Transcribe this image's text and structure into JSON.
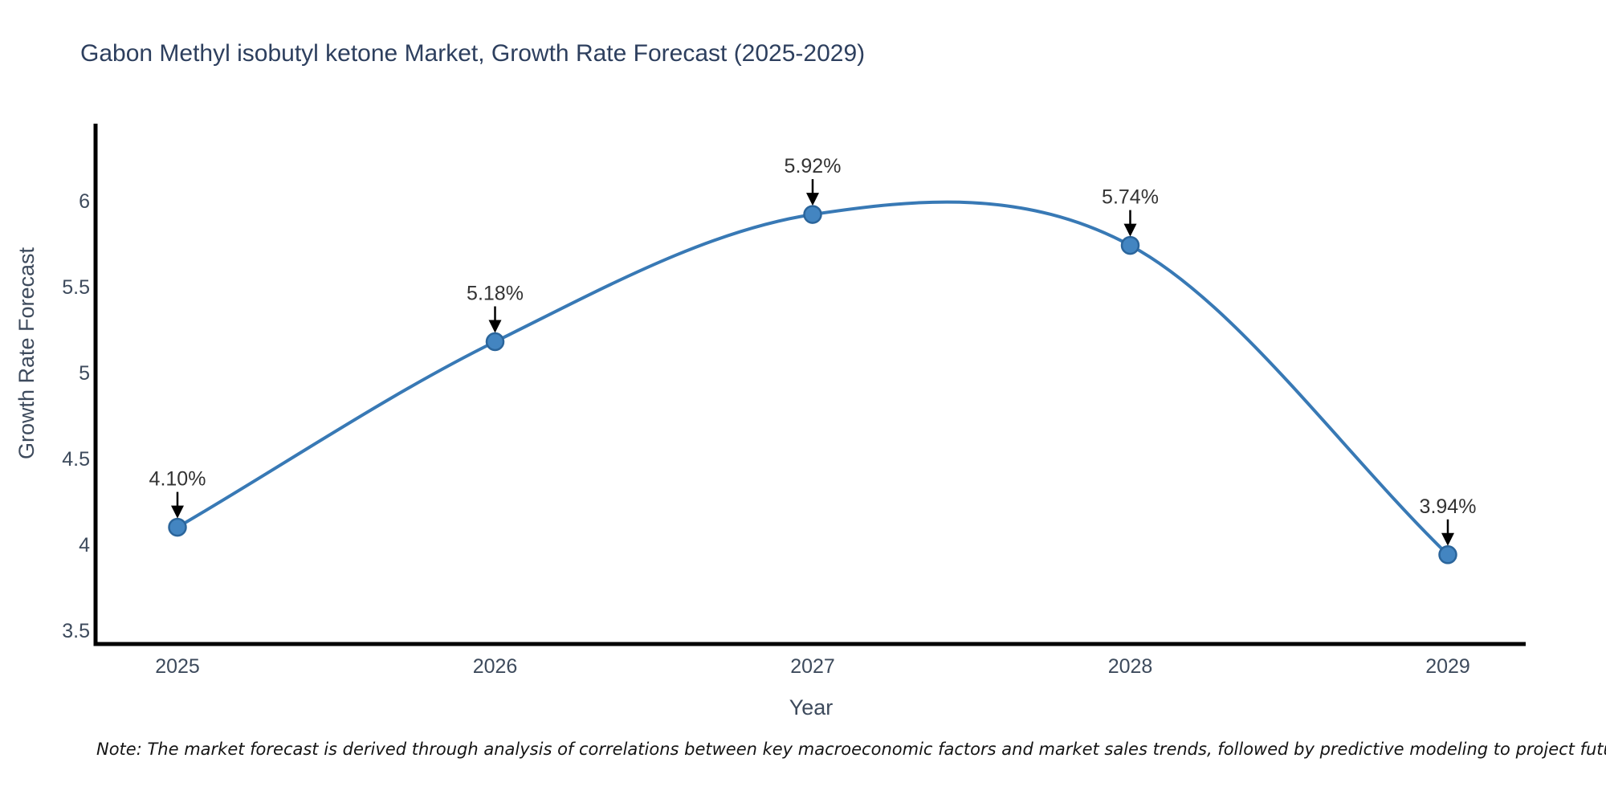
{
  "note": "Note: The market forecast is derived through analysis of correlations between key macroeconomic factors and market sales trends, followed by predictive modeling to project future sales",
  "chart_data": {
    "type": "line",
    "title": "Gabon Methyl isobutyl ketone Market, Growth Rate Forecast (2025-2029)",
    "xlabel": "Year",
    "ylabel": "Growth Rate Forecast",
    "categories": [
      "2025",
      "2026",
      "2027",
      "2028",
      "2029"
    ],
    "values": [
      4.1,
      5.18,
      5.92,
      5.74,
      3.94
    ],
    "point_labels": [
      "4.10%",
      "5.18%",
      "5.92%",
      "5.74%",
      "3.94%"
    ],
    "y_ticks": [
      "3.5",
      "4",
      "4.5",
      "5",
      "5.5",
      "6"
    ],
    "ylim": [
      3.42,
      6.45
    ],
    "xlim_categories": [
      "2025",
      "2029"
    ],
    "grid": false,
    "legend": "none",
    "curve": "smooth-spline",
    "marker": "circle",
    "colors": {
      "line": "#3879b5",
      "marker_fill": "#4385c1",
      "marker_edge": "#2b659b",
      "axis": "#000000",
      "tick_label": "#3d4a5c",
      "title": "#2d3f5e",
      "annotation_text": "#333333",
      "annotation_arrow": "#000000",
      "background": "#ffffff"
    }
  }
}
